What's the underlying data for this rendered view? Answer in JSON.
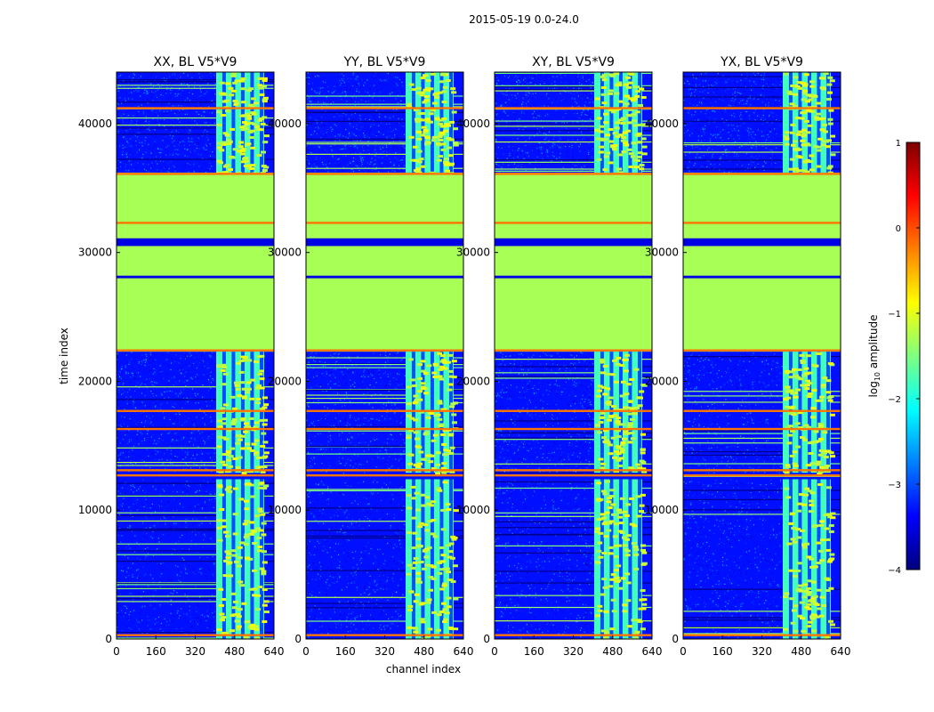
{
  "figure": {
    "suptitle": "2015-05-19 0.0-24.0",
    "xlabel": "channel index",
    "ylabel": "time index"
  },
  "colorbar": {
    "label": "log10 amplitude",
    "label_base": "log",
    "label_sub": "10",
    "label_rest": " amplitude",
    "range": [
      -4,
      1
    ],
    "ticks": [
      1,
      0,
      -1,
      -2,
      -3,
      -4
    ],
    "tick_labels": [
      "1",
      "0",
      "−1",
      "−2",
      "−3",
      "−4"
    ],
    "colormap": "jet",
    "colors": [
      "#00007f",
      "#0000ff",
      "#007fff",
      "#00ffff",
      "#7fff7f",
      "#ffff00",
      "#ff7f00",
      "#ff0000",
      "#7f0000"
    ]
  },
  "chart_data": {
    "type": "heatmap",
    "xlim": [
      0,
      640
    ],
    "ylim": [
      0,
      44000
    ],
    "xticks": [
      0,
      160,
      320,
      480,
      640
    ],
    "yticks": [
      0,
      10000,
      20000,
      30000,
      40000
    ],
    "xtick_labels": [
      "0",
      "160",
      "320",
      "480",
      "640"
    ],
    "ytick_labels": [
      "0",
      "10000",
      "20000",
      "30000",
      "40000"
    ],
    "value_unit": "log10 amplitude",
    "panels": [
      {
        "title": "XX, BL V5*V9",
        "rfi_channel_range": [
          405,
          600
        ]
      },
      {
        "title": "YY, BL V5*V9",
        "rfi_channel_range": [
          405,
          600
        ]
      },
      {
        "title": "XY, BL V5*V9",
        "rfi_channel_range": [
          405,
          600
        ]
      },
      {
        "title": "YX, BL V5*V9",
        "rfi_channel_range": [
          405,
          600
        ]
      }
    ],
    "background_log_amplitude": -3.3,
    "flagged_time_ranges": [
      [
        22300,
        36200
      ]
    ],
    "flagged_value": -1.3,
    "bright_time_rows": [
      300,
      12700,
      13100,
      16300,
      17700,
      22400,
      32300,
      36100,
      41200
    ],
    "noisy_time_ranges": [
      [
        36200,
        44000
      ],
      [
        12900,
        22300
      ],
      [
        0,
        12400
      ]
    ]
  }
}
